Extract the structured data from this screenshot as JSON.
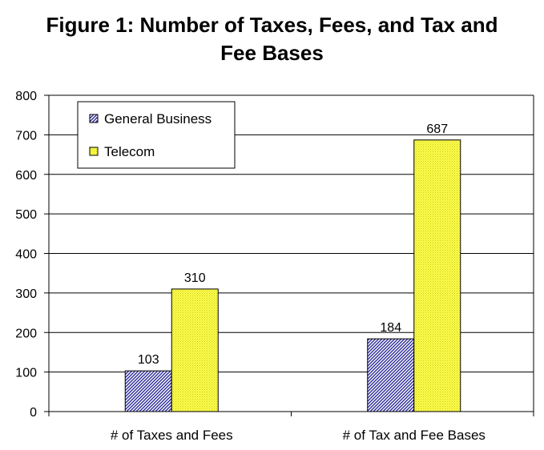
{
  "title": {
    "line1": "Figure 1: Number of Taxes, Fees, and Tax and",
    "line2": "Fee Bases"
  },
  "chart_data": {
    "type": "bar",
    "title": "Figure 1: Number of Taxes, Fees, and Tax and Fee Bases",
    "categories": [
      "# of Taxes and Fees",
      "# of Tax and Fee Bases"
    ],
    "series": [
      {
        "name": "General Business",
        "values": [
          103,
          184
        ],
        "color": "#3333aa",
        "pattern": "diagonal-hatch"
      },
      {
        "name": "Telecom",
        "values": [
          310,
          687
        ],
        "color": "#ffff66",
        "pattern": "dotted"
      }
    ],
    "data_labels": true,
    "xlabel": "",
    "ylabel": "",
    "ylim": [
      0,
      800
    ],
    "yticks": [
      0,
      100,
      200,
      300,
      400,
      500,
      600,
      700,
      800
    ],
    "grid": "horizontal",
    "legend_position": "top-left"
  }
}
